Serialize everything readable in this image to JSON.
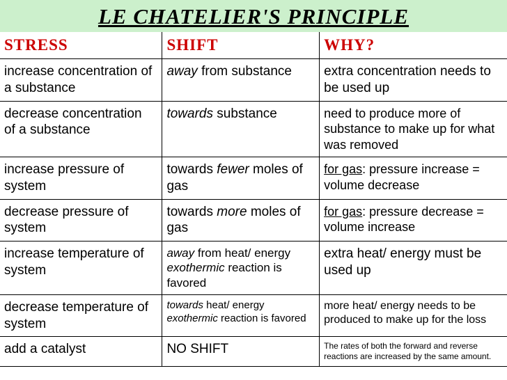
{
  "title": "LE CHATELIER'S PRINCIPLE",
  "headers": {
    "stress": "STRESS",
    "shift": "SHIFT",
    "why": "WHY?"
  },
  "rows": [
    {
      "stress_html": "increase concentration of a substance",
      "shift_html": "<span class='it'>away</span> from substance",
      "why_html": "extra concentration needs to be used up",
      "stress_size": 19,
      "shift_size": 19,
      "why_size": 19
    },
    {
      "stress_html": "decrease concentration of a substance",
      "shift_html": "<span class='it'>towards</span> substance",
      "why_html": "need to produce more of substance to make up for what was removed",
      "stress_size": 19,
      "shift_size": 19,
      "why_size": 18
    },
    {
      "stress_html": "increase pressure of system",
      "shift_html": "towards <span class='it'>fewer</span> moles of gas",
      "why_html": "<span class='ul'>for gas</span>: pressure increase = volume decrease",
      "stress_size": 19,
      "shift_size": 19,
      "why_size": 18
    },
    {
      "stress_html": "decrease pressure of system",
      "shift_html": "towards <span class='it'>more</span> moles of gas",
      "why_html": "<span class='ul'>for gas</span>: pressure decrease = volume increase",
      "stress_size": 19,
      "shift_size": 19,
      "why_size": 18
    },
    {
      "stress_html": "increase temperature of system",
      "shift_html": "<span class='it'>away</span> from heat/ energy<br><span class='it'>exothermic</span> reaction is favored",
      "why_html": "extra heat/ energy must be used up",
      "stress_size": 19,
      "shift_size": 17,
      "why_size": 19
    },
    {
      "stress_html": "decrease temperature of system",
      "shift_html": "<span class='it'>towards</span> heat/ energy<br><span class='it'>exothermic</span> reaction is favored",
      "why_html": "more heat/ energy needs to be produced to make up for the loss",
      "stress_size": 19,
      "shift_size": 15,
      "why_size": 16
    },
    {
      "stress_html": "add a catalyst",
      "shift_html": "NO SHIFT",
      "why_html": "The rates of both the forward and reverse reactions are increased by the same amount.",
      "stress_size": 19,
      "shift_size": 19,
      "why_size": 12
    }
  ],
  "colors": {
    "title_bg": "#ccf0cc",
    "header_text": "#cc0000",
    "border": "#000000",
    "body_text": "#000000",
    "background": "#ffffff"
  }
}
